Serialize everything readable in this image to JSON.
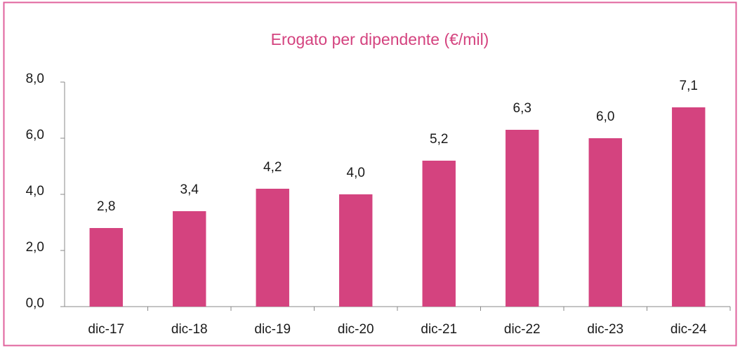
{
  "chart_data": {
    "type": "bar",
    "title": "Erogato per dipendente (€/mil)",
    "categories": [
      "dic-17",
      "dic-18",
      "dic-19",
      "dic-20",
      "dic-21",
      "dic-22",
      "dic-23",
      "dic-24"
    ],
    "values": [
      2.8,
      3.4,
      4.2,
      4.0,
      5.2,
      6.3,
      6.0,
      7.1
    ],
    "value_labels": [
      "2,8",
      "3,4",
      "4,2",
      "4,0",
      "5,2",
      "6,3",
      "6,0",
      "7,1"
    ],
    "color": "#d4437f",
    "ylim": [
      0,
      8
    ],
    "yticks": [
      {
        "value": 0,
        "label": "0,0"
      },
      {
        "value": 2,
        "label": "2,0"
      },
      {
        "value": 4,
        "label": "4,0"
      },
      {
        "value": 6,
        "label": "6,0"
      },
      {
        "value": 8,
        "label": "8,0"
      }
    ],
    "grid": false
  }
}
